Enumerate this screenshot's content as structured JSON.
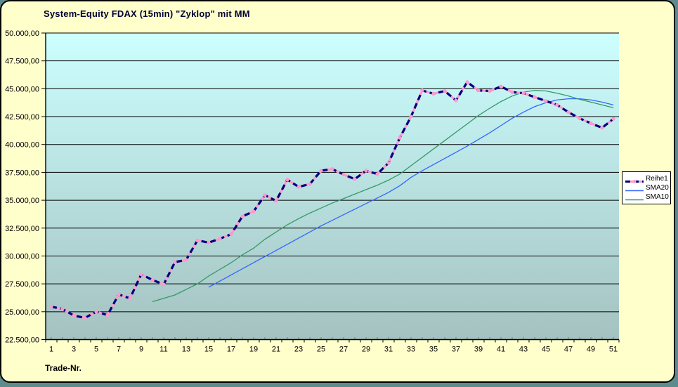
{
  "title": "System-Equity FDAX (15min) \"Zyklop\" mit MM",
  "x_axis_title": "Trade-Nr.",
  "colors": {
    "chart_background": "#FFFFCC",
    "page_background": "#5E8C8C",
    "plot_gradient_top": "#CCFFFF",
    "plot_gradient_bottom": "#A4C2C0",
    "gridline": "#000000",
    "axis_text": "#000000",
    "title_text": "#000033",
    "legend_background": "#FFFFFF"
  },
  "chart_data": {
    "type": "line",
    "title": "System-Equity FDAX (15min) \"Zyklop\" mit MM",
    "xlabel": "Trade-Nr.",
    "ylabel": "",
    "x_range": [
      1,
      51
    ],
    "ylim": [
      22500,
      50000
    ],
    "y_tick_step": 2500,
    "grid": true,
    "legend_position": "right",
    "y_ticks": [
      {
        "label": "50.000,00",
        "value": 50000
      },
      {
        "label": "47.500,00",
        "value": 47500
      },
      {
        "label": "45.000,00",
        "value": 45000
      },
      {
        "label": "42.500,00",
        "value": 42500
      },
      {
        "label": "40.000,00",
        "value": 40000
      },
      {
        "label": "37.500,00",
        "value": 37500
      },
      {
        "label": "35.000,00",
        "value": 35000
      },
      {
        "label": "32.500,00",
        "value": 32500
      },
      {
        "label": "30.000,00",
        "value": 30000
      },
      {
        "label": "27.500,00",
        "value": 27500
      },
      {
        "label": "25.000,00",
        "value": 25000
      },
      {
        "label": "22.500,00",
        "value": 22500
      }
    ],
    "x_tick_labels": [
      "1",
      "3",
      "5",
      "7",
      "9",
      "11",
      "13",
      "15",
      "17",
      "19",
      "21",
      "23",
      "25",
      "27",
      "29",
      "31",
      "33",
      "35",
      "37",
      "39",
      "41",
      "43",
      "45",
      "47",
      "49",
      "51"
    ],
    "series": [
      {
        "name": "Reihe1",
        "color": "#000080",
        "marker_color": "#FF99CC",
        "style": "thick-dashed-with-markers",
        "start_x": 1,
        "values": [
          25450,
          25250,
          24650,
          24450,
          25000,
          24700,
          26550,
          26200,
          28350,
          27850,
          27450,
          29450,
          29650,
          31400,
          31200,
          31550,
          31950,
          33550,
          34000,
          35450,
          34950,
          36850,
          36200,
          36450,
          37650,
          37800,
          37300,
          36900,
          37650,
          37350,
          38350,
          40600,
          42500,
          44850,
          44550,
          44800,
          43950,
          45600,
          44850,
          44800,
          45200,
          44700,
          44600,
          44250,
          43900,
          43550,
          42900,
          42350,
          41900,
          41500,
          42300
        ]
      },
      {
        "name": "SMA20",
        "color": "#3366FF",
        "style": "thin",
        "start_x": 15,
        "values": [
          27200,
          27750,
          28300,
          28850,
          29400,
          29950,
          30500,
          31050,
          31600,
          32150,
          32700,
          33200,
          33700,
          34200,
          34700,
          35200,
          35700,
          36300,
          37050,
          37650,
          38200,
          38750,
          39300,
          39850,
          40450,
          41050,
          41700,
          42350,
          42900,
          43400,
          43750,
          44000,
          44100,
          44100,
          44000,
          43800,
          43550
        ]
      },
      {
        "name": "SMA10",
        "color": "#339966",
        "style": "thin",
        "start_x": 10,
        "values": [
          25900,
          26200,
          26500,
          27000,
          27500,
          28200,
          28800,
          29400,
          30100,
          30700,
          31500,
          32150,
          32800,
          33350,
          33850,
          34300,
          34750,
          35150,
          35550,
          35950,
          36350,
          36800,
          37350,
          38100,
          38850,
          39600,
          40350,
          41100,
          41850,
          42600,
          43250,
          43850,
          44350,
          44700,
          44850,
          44800,
          44600,
          44350,
          44050,
          43800,
          43550,
          43300
        ]
      }
    ]
  }
}
